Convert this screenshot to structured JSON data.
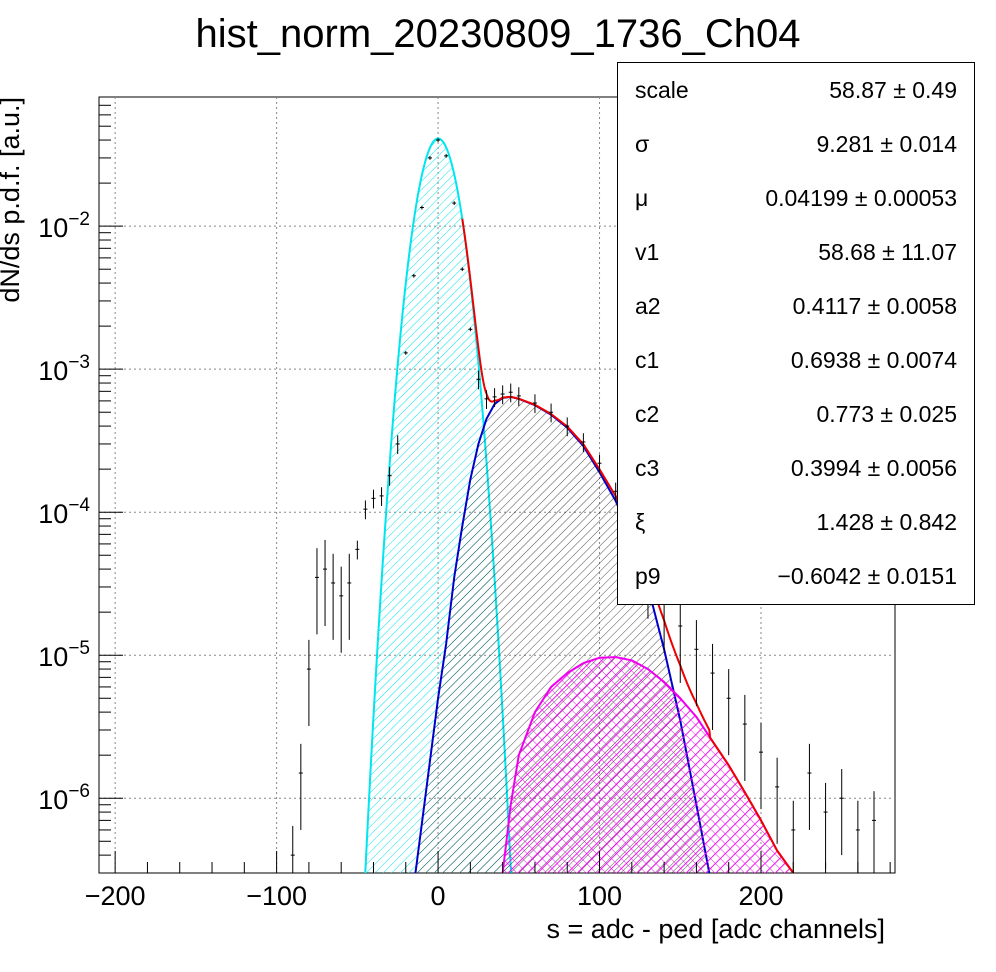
{
  "chart_data": {
    "type": "line",
    "title": "hist_norm_20230809_1736_Ch04",
    "xlabel": "s = adc - ped [adc channels]",
    "ylabel": "dN/ds p.d.f. [a.u.]",
    "xlim": [
      -210,
      283
    ],
    "ylim": [
      3e-07,
      0.08
    ],
    "yscale": "log",
    "grid": true,
    "x_ticks": [
      -200,
      -100,
      0,
      100,
      200
    ],
    "x_tick_labels": [
      "−200",
      "−100",
      "0",
      "100",
      "200"
    ],
    "y_ticks": [
      {
        "value": 1e-06,
        "base": "10",
        "exp": "−6"
      },
      {
        "value": 1e-05,
        "base": "10",
        "exp": "−5"
      },
      {
        "value": 0.0001,
        "base": "10",
        "exp": "−4"
      },
      {
        "value": 0.001,
        "base": "10",
        "exp": "−3"
      },
      {
        "value": 0.01,
        "base": "10",
        "exp": "−2"
      }
    ],
    "series": [
      {
        "color": "#00e5ee",
        "kind": "gaussian-filled",
        "peak": 0.041,
        "mu": 0.04199,
        "sigma": 9.281
      },
      {
        "color": "#0000cc",
        "kind": "curve-filled",
        "points": [
          [
            -14,
            3e-07
          ],
          [
            -8,
            1e-06
          ],
          [
            0,
            5e-06
          ],
          [
            5,
            1.2e-05
          ],
          [
            10,
            3.5e-05
          ],
          [
            15,
            8e-05
          ],
          [
            20,
            0.00017
          ],
          [
            25,
            0.0003
          ],
          [
            30,
            0.00045
          ],
          [
            35,
            0.00057
          ],
          [
            40,
            0.00063
          ],
          [
            45,
            0.00064
          ],
          [
            50,
            0.00062
          ],
          [
            60,
            0.00056
          ],
          [
            70,
            0.00048
          ],
          [
            80,
            0.00039
          ],
          [
            90,
            0.00029
          ],
          [
            100,
            0.00019
          ],
          [
            110,
            0.00012
          ],
          [
            120,
            6.5e-05
          ],
          [
            130,
            3e-05
          ],
          [
            140,
            1.1e-05
          ],
          [
            150,
            3.5e-06
          ],
          [
            160,
            9e-07
          ],
          [
            168,
            3e-07
          ]
        ]
      },
      {
        "color": "#ee00ee",
        "kind": "curve-filled",
        "points": [
          [
            40,
            3e-07
          ],
          [
            45,
            9e-07
          ],
          [
            50,
            2e-06
          ],
          [
            60,
            4e-06
          ],
          [
            70,
            6e-06
          ],
          [
            80,
            7.5e-06
          ],
          [
            90,
            8.8e-06
          ],
          [
            100,
            9.6e-06
          ],
          [
            110,
            9.7e-06
          ],
          [
            120,
            9.2e-06
          ],
          [
            130,
            8e-06
          ],
          [
            140,
            6.5e-06
          ],
          [
            150,
            5e-06
          ],
          [
            160,
            3.7e-06
          ],
          [
            170,
            2.5e-06
          ],
          [
            180,
            1.7e-06
          ],
          [
            190,
            1.1e-06
          ],
          [
            200,
            7e-07
          ],
          [
            210,
            4.3e-07
          ],
          [
            220,
            3e-07
          ]
        ]
      },
      {
        "color": "#ee0000",
        "kind": "total-fit"
      }
    ],
    "data_points": [
      [
        -90,
        4e-07
      ],
      [
        -85,
        1.5e-06
      ],
      [
        -80,
        8e-06
      ],
      [
        -75,
        3.5e-05
      ],
      [
        -70,
        4e-05
      ],
      [
        -65,
        3.2e-05
      ],
      [
        -60,
        2.6e-05
      ],
      [
        -55,
        3.2e-05
      ],
      [
        -50,
        5.5e-05
      ],
      [
        -45,
        0.000105
      ],
      [
        -40,
        0.000125
      ],
      [
        -35,
        0.00013
      ],
      [
        -30,
        0.00018
      ],
      [
        -25,
        0.0003
      ],
      [
        -20,
        0.0013
      ],
      [
        -15,
        0.0045
      ],
      [
        -10,
        0.0135
      ],
      [
        -5,
        0.03
      ],
      [
        0,
        0.04
      ],
      [
        5,
        0.031
      ],
      [
        10,
        0.0145
      ],
      [
        15,
        0.005
      ],
      [
        20,
        0.0019
      ],
      [
        25,
        0.00085
      ],
      [
        30,
        0.00062
      ],
      [
        35,
        0.00064
      ],
      [
        40,
        0.00067
      ],
      [
        45,
        0.00069
      ],
      [
        50,
        0.00065
      ],
      [
        60,
        0.00058
      ],
      [
        70,
        0.0005
      ],
      [
        80,
        0.0004
      ],
      [
        90,
        0.00031
      ],
      [
        100,
        0.00022
      ],
      [
        110,
        0.00014
      ],
      [
        120,
        8.5e-05
      ],
      [
        130,
        4.5e-05
      ],
      [
        140,
        2.6e-05
      ],
      [
        150,
        1.6e-05
      ],
      [
        160,
        1.1e-05
      ],
      [
        170,
        7.5e-06
      ],
      [
        180,
        5e-06
      ],
      [
        190,
        3.3e-06
      ],
      [
        200,
        2.1e-06
      ],
      [
        210,
        1.2e-06
      ],
      [
        220,
        6e-07
      ],
      [
        230,
        1.5e-06
      ],
      [
        240,
        8e-07
      ],
      [
        250,
        1e-06
      ],
      [
        260,
        6e-07
      ],
      [
        270,
        7e-07
      ]
    ],
    "stats": [
      {
        "name": "scale",
        "value": "58.87 ± 0.49"
      },
      {
        "name": "σ",
        "value": "9.281 ± 0.014"
      },
      {
        "name": "μ",
        "value": "0.04199 ± 0.00053"
      },
      {
        "name": "v1",
        "value": "58.68 ± 11.07"
      },
      {
        "name": "a2",
        "value": "0.4117 ± 0.0058"
      },
      {
        "name": "c1",
        "value": "0.6938 ± 0.0074"
      },
      {
        "name": "c2",
        "value": "0.773 ± 0.025"
      },
      {
        "name": "c3",
        "value": "0.3994 ± 0.0056"
      },
      {
        "name": "ξ",
        "value": "1.428 ± 0.842"
      },
      {
        "name": "p9",
        "value": "−0.6042 ± 0.0151"
      }
    ]
  }
}
